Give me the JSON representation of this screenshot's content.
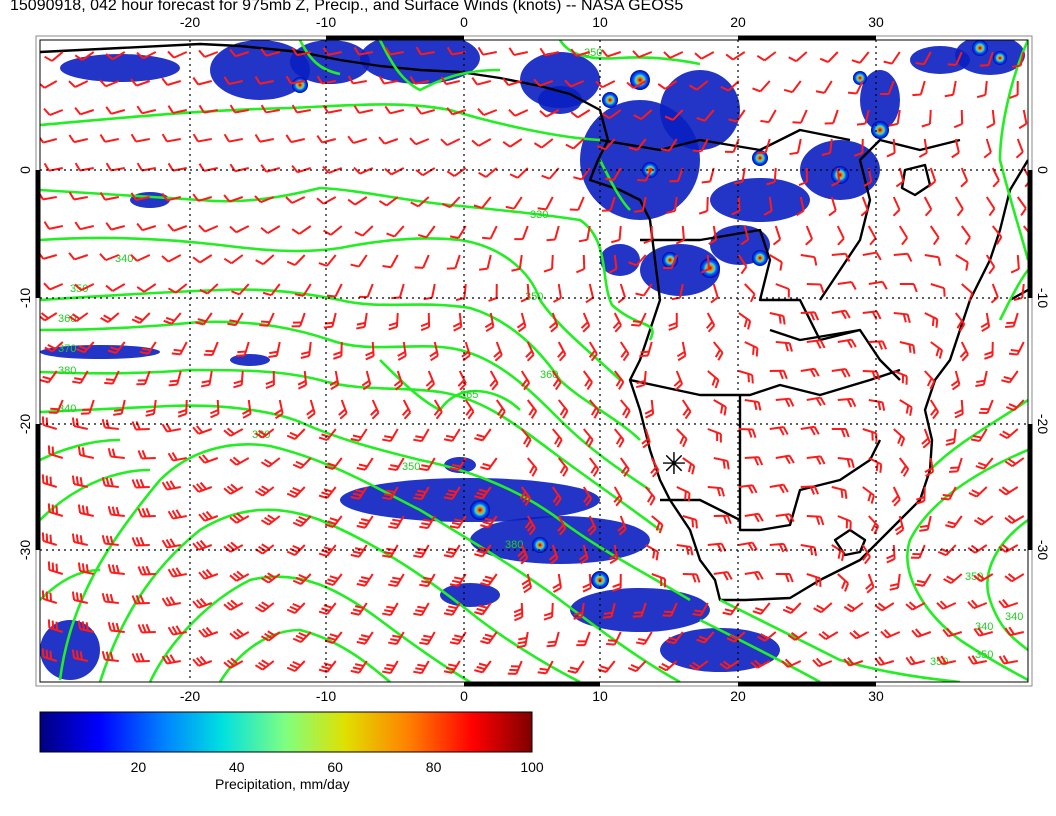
{
  "title": "15090918, 042 hour forecast for 975mb Z, Precip., and Surface Winds (knots) -- NASA GEOS5",
  "x_ticks": [
    "-20",
    "-10",
    "0",
    "10",
    "20",
    "30"
  ],
  "y_ticks": [
    "0",
    "-10",
    "-20",
    "-30"
  ],
  "contour_labels": [
    "350",
    "330",
    "340",
    "350",
    "360",
    "370",
    "380",
    "340",
    "360",
    "350",
    "350",
    "360",
    "365",
    "380",
    "340",
    "350",
    "350",
    "350",
    "340"
  ],
  "marker_symbol": "✳",
  "colorbar": {
    "label": "Precipitation, mm/day",
    "ticks": [
      "20",
      "40",
      "60",
      "80",
      "100"
    ],
    "tick_values": [
      20,
      40,
      60,
      80,
      100
    ],
    "range": [
      0,
      100
    ],
    "colors": [
      "#00007f",
      "#0000ff",
      "#0080ff",
      "#00e0e0",
      "#80ff80",
      "#e0e000",
      "#ff8000",
      "#ff0000",
      "#7f0000"
    ]
  },
  "colors": {
    "contour": "#22ee22",
    "wind_barb": "#ff1a1a",
    "coastline": "#000000",
    "precip": "#0000cc"
  }
}
